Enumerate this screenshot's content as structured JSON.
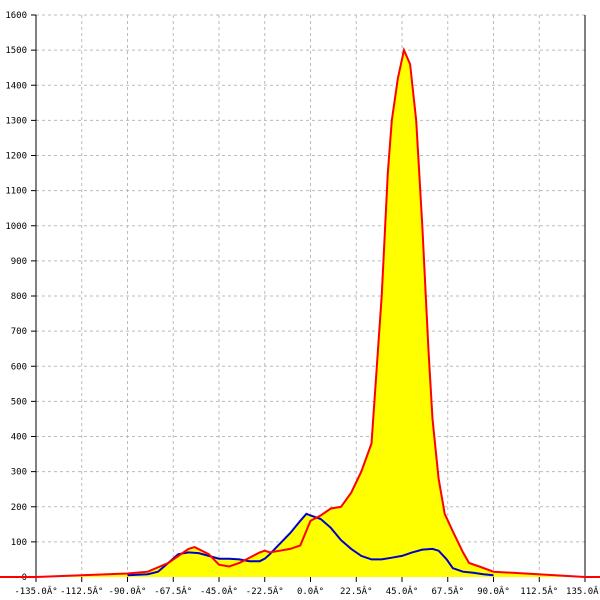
{
  "chart_data": {
    "type": "area",
    "title": "",
    "xlabel": "",
    "ylabel": "",
    "xlim": [
      -135,
      135
    ],
    "ylim": [
      0,
      1600
    ],
    "grid": true,
    "x_ticks": [
      -135,
      -112.5,
      -90,
      -67.5,
      -45,
      -22.5,
      0,
      22.5,
      45,
      67.5,
      90,
      112.5,
      135
    ],
    "x_tick_labels": [
      "-135.0Â°",
      "-112.5Â°",
      "-90.0Â°",
      "-67.5Â°",
      "-45.0Â°",
      "-22.5Â°",
      "0.0Â°",
      "22.5Â°",
      "45.0Â°",
      "67.5Â°",
      "90.0Â°",
      "112.5Â°",
      "135.0Â°"
    ],
    "y_ticks": [
      0,
      100,
      200,
      300,
      400,
      500,
      600,
      700,
      800,
      900,
      1000,
      1100,
      1200,
      1300,
      1400,
      1500,
      1600
    ],
    "fill_color": "#ffff00",
    "series": [
      {
        "color": "#0000cc",
        "x": [
          -90,
          -80,
          -75,
          -70,
          -65,
          -60,
          -55,
          -50,
          -45,
          -40,
          -35,
          -30,
          -25,
          -22.5,
          -20,
          -15,
          -10,
          -5,
          -2,
          0,
          5,
          10,
          15,
          20,
          25,
          30,
          35,
          40,
          45,
          50,
          55,
          60,
          63,
          67,
          70,
          75,
          80,
          85,
          90
        ],
        "y": [
          5,
          8,
          15,
          40,
          65,
          70,
          68,
          60,
          52,
          52,
          50,
          45,
          45,
          52,
          65,
          95,
          125,
          160,
          180,
          175,
          165,
          140,
          105,
          80,
          60,
          50,
          50,
          55,
          60,
          70,
          78,
          80,
          75,
          50,
          25,
          15,
          12,
          8,
          5
        ]
      },
      {
        "color": "#ff0000",
        "x": [
          -135,
          -90,
          -80,
          -70,
          -60,
          -57,
          -50,
          -45,
          -40,
          -35,
          -30,
          -25,
          -22.5,
          -20,
          -15,
          -10,
          -5,
          0,
          5,
          10,
          15,
          20,
          25,
          30,
          35,
          38,
          40,
          43,
          46,
          49,
          52,
          55,
          58,
          60,
          63,
          66,
          70,
          75,
          78,
          83,
          90,
          135
        ],
        "y": [
          0,
          10,
          15,
          40,
          80,
          85,
          65,
          35,
          30,
          40,
          55,
          70,
          75,
          70,
          75,
          80,
          90,
          160,
          175,
          195,
          200,
          240,
          300,
          380,
          800,
          1150,
          1300,
          1420,
          1500,
          1460,
          1300,
          1000,
          650,
          450,
          280,
          180,
          130,
          70,
          40,
          30,
          15,
          0
        ]
      }
    ]
  }
}
